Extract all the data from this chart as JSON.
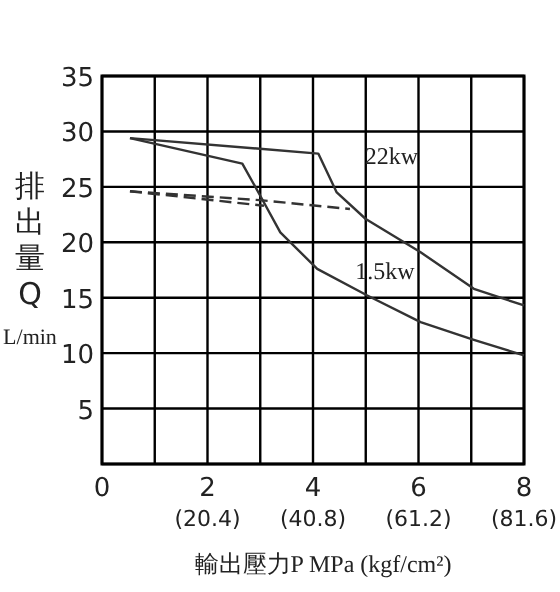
{
  "chart_data": {
    "type": "line",
    "xlabel": "輸出壓力P MPa (kgf/cm²)",
    "ylabel": "排出量Q\nL/min",
    "xlim": [
      0,
      8
    ],
    "ylim": [
      0,
      35
    ],
    "xticks": [
      0,
      {
        "value": 1,
        "label": null
      },
      2,
      {
        "value": 3,
        "label": null
      },
      4,
      {
        "value": 5,
        "label": null
      },
      6,
      {
        "value": 7,
        "label": null
      },
      8
    ],
    "x2lim": [
      0,
      81.6
    ],
    "x2ticks": [
      {
        "value": 20.4,
        "label": "(20.4)"
      },
      {
        "value": 40.8,
        "label": "(40.8)"
      },
      {
        "value": 61.2,
        "label": "(61.2)"
      },
      {
        "value": 81.6,
        "label": "(81.6)"
      }
    ],
    "yticks": [
      {
        "value": 0,
        "label": null
      },
      5,
      10,
      15,
      20,
      25,
      30,
      35
    ],
    "grid": true,
    "marker": "none",
    "series": [
      {
        "name": "22kw",
        "color": "#333333",
        "line_style": "solid",
        "x": [
          0.53,
          4.1,
          4.45,
          5.0,
          6.04,
          7.05,
          8
        ],
        "values": [
          29.4,
          28.0,
          24.5,
          22.1,
          19.1,
          15.8,
          14.3
        ]
      },
      {
        "name": "1.5kw",
        "color": "#333333",
        "line_style": "solid",
        "x": [
          0.53,
          2.66,
          3.0,
          3.38,
          4.08,
          5.03,
          6.04,
          7.05,
          8
        ],
        "values": [
          29.4,
          27.1,
          24.2,
          20.9,
          17.6,
          15.2,
          12.8,
          11.2,
          9.8
        ]
      },
      {
        "color": "#333333",
        "line_style": "dashed",
        "x": [
          0.53,
          3.0,
          4.7
        ],
        "values": [
          24.6,
          23.8,
          23.0
        ]
      },
      {
        "color": "#333333",
        "line_style": "dashed",
        "x": [
          0.53,
          3.07
        ],
        "values": [
          24.6,
          23.3
        ]
      }
    ]
  }
}
